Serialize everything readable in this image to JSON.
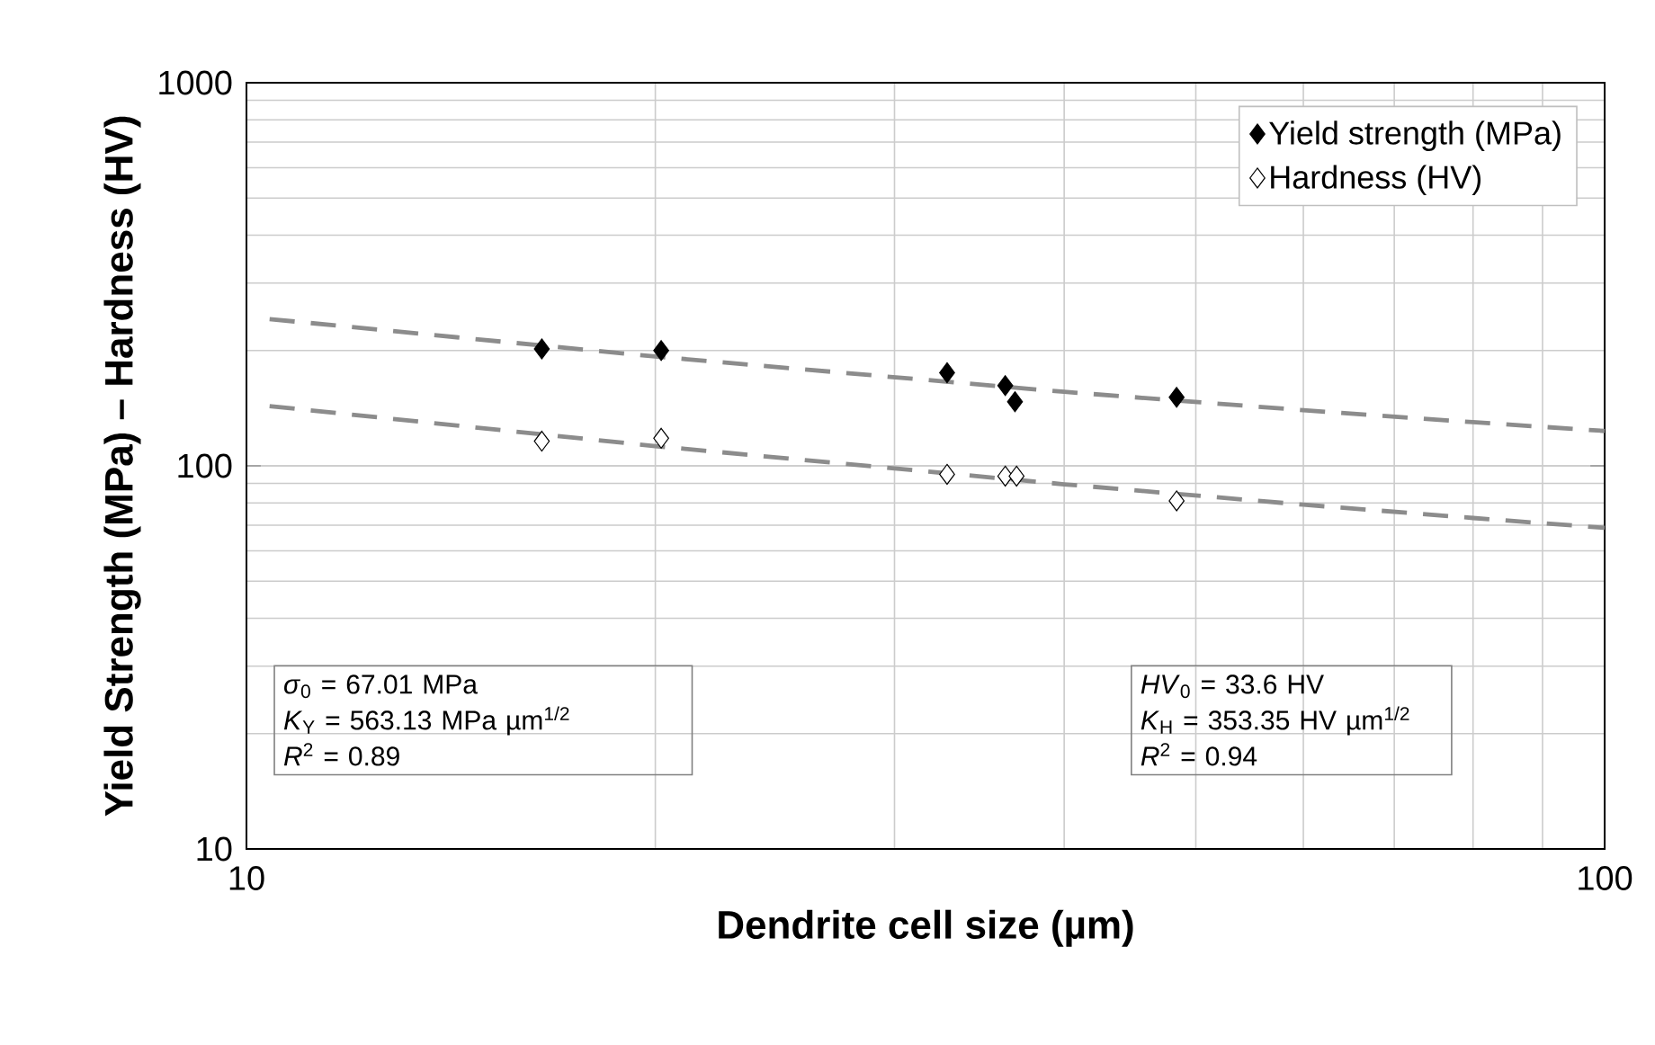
{
  "chart_data": {
    "type": "scatter",
    "xlabel": "Dendrite cell size (µm)",
    "ylabel": "Yield Strength (MPa) – Hardness (HV)",
    "log": "xy",
    "xlim": [
      10,
      100
    ],
    "ylim": [
      10,
      1000
    ],
    "xticks": [
      10,
      100
    ],
    "yticks": [
      10,
      100,
      1000
    ],
    "grid": true,
    "legend": "top right",
    "series": [
      {
        "name": "Yield strength (MPa)",
        "color": "#000000",
        "marker": "diamond",
        "x": [
          16.5,
          20.2,
          32.8,
          36.2,
          36.8,
          48.4
        ],
        "values": [
          202,
          200,
          175,
          162,
          147,
          151
        ]
      },
      {
        "name": "Hardness (HV)",
        "color": "#ffffff",
        "marker": "diamond",
        "x": [
          16.5,
          20.2,
          32.8,
          36.2,
          36.9,
          48.4
        ],
        "values": [
          116,
          118,
          95,
          94,
          94,
          81
        ]
      },
      {
        "type": "line",
        "color": "#8c8c8c",
        "line_style": "dashed",
        "marker": "none",
        "x": [
          10.4,
          20,
          40,
          60,
          80,
          100
        ],
        "values": [
          241.6,
          192.9,
          156.0,
          139.7,
          130.0,
          123.3
        ]
      },
      {
        "type": "line",
        "color": "#8c8c8c",
        "line_style": "dashed",
        "marker": "none",
        "x": [
          10.4,
          20,
          40,
          60,
          80,
          100
        ],
        "values": [
          143.2,
          112.6,
          89.5,
          79.2,
          73.1,
          68.9
        ]
      }
    ],
    "annotations": [
      "*σ*$_{0}$ = 67.01 MPa",
      "*K*$_{Y}$ = 563.13 MPa  µm$^{1/2}$",
      "*R*$^{2}$ = 0.89",
      "*HV*$_{0}$ = 33.6 HV",
      "*K*$_{H}$ = 353.35 HV  µm$^{1/2}$",
      "*R*$^{2}$ = 0.94"
    ]
  }
}
